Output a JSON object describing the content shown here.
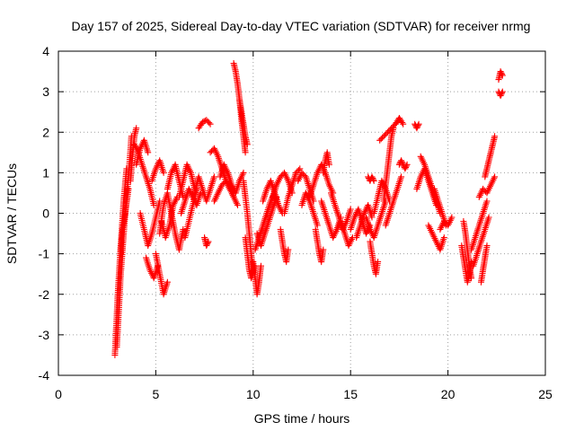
{
  "chart_data": {
    "type": "scatter",
    "title": "Day 157 of 2025, Sidereal Day-to-day VTEC variation (SDTVAR) for receiver nrmg",
    "xlabel": "GPS time / hours",
    "ylabel": "SDTVAR / TECUs",
    "xlim": [
      0,
      25
    ],
    "ylim": [
      -4,
      4
    ],
    "xticks": [
      0,
      5,
      10,
      15,
      20,
      25
    ],
    "yticks": [
      -4,
      -3,
      -2,
      -1,
      0,
      1,
      2,
      3,
      4
    ],
    "xtick_labels": [
      "0",
      "5",
      "10",
      "15",
      "20",
      "25"
    ],
    "ytick_labels": [
      "-4",
      "-3",
      "-2",
      "-1",
      "0",
      "1",
      "2",
      "3",
      "4"
    ],
    "grid": true,
    "marker": "+",
    "color": "#ff0000",
    "segments": [
      {
        "x": [
          2.9,
          3.05,
          3.2,
          3.35,
          3.5
        ],
        "y": [
          -3.5,
          -2.0,
          -0.8,
          0.3,
          1.1
        ]
      },
      {
        "x": [
          3.0,
          3.2,
          3.4,
          3.6,
          3.75
        ],
        "y": [
          -3.3,
          -1.5,
          -0.2,
          0.9,
          1.9
        ]
      },
      {
        "x": [
          3.2,
          3.3,
          3.45,
          3.6
        ],
        "y": [
          -1.0,
          -0.4,
          0.1,
          0.6
        ]
      },
      {
        "x": [
          3.7,
          3.8,
          3.9,
          4.0
        ],
        "y": [
          0.8,
          1.4,
          1.9,
          2.1
        ]
      },
      {
        "x": [
          3.9,
          4.1,
          4.3,
          4.5,
          4.7,
          4.9
        ],
        "y": [
          1.7,
          1.5,
          1.2,
          0.9,
          0.6,
          0.2
        ]
      },
      {
        "x": [
          4.0,
          4.2,
          4.4,
          4.6
        ],
        "y": [
          1.2,
          1.6,
          1.8,
          1.5
        ]
      },
      {
        "x": [
          4.2,
          4.4,
          4.6,
          4.8,
          5.0,
          5.2
        ],
        "y": [
          0.0,
          -0.4,
          -0.8,
          -0.5,
          -0.1,
          0.3
        ]
      },
      {
        "x": [
          4.5,
          4.7,
          4.9,
          5.1
        ],
        "y": [
          -1.1,
          -1.4,
          -1.6,
          -1.3
        ]
      },
      {
        "x": [
          4.8,
          5.0,
          5.2,
          5.4
        ],
        "y": [
          0.8,
          1.1,
          1.3,
          1.0
        ]
      },
      {
        "x": [
          5.0,
          5.2,
          5.4,
          5.6
        ],
        "y": [
          -1.0,
          -1.5,
          -2.0,
          -1.7
        ]
      },
      {
        "x": [
          5.2,
          5.4,
          5.6,
          5.8,
          6.0,
          6.2,
          6.4
        ],
        "y": [
          -0.5,
          0.2,
          0.5,
          0.0,
          -0.5,
          -0.9,
          -0.4
        ]
      },
      {
        "x": [
          5.3,
          5.5,
          5.7,
          5.9,
          6.1
        ],
        "y": [
          -0.2,
          -0.6,
          -0.3,
          0.2,
          0.4
        ]
      },
      {
        "x": [
          5.6,
          5.8,
          6.0,
          6.2,
          6.4
        ],
        "y": [
          0.6,
          1.0,
          1.2,
          0.8,
          0.4
        ]
      },
      {
        "x": [
          6.2,
          6.4,
          6.6,
          6.8,
          7.0
        ],
        "y": [
          0.4,
          0.8,
          1.2,
          1.0,
          0.6
        ]
      },
      {
        "x": [
          6.3,
          6.5,
          6.7,
          6.9,
          7.1,
          7.3
        ],
        "y": [
          0.0,
          0.3,
          0.6,
          0.4,
          0.2,
          0.5
        ]
      },
      {
        "x": [
          6.5,
          6.7,
          6.9,
          7.1
        ],
        "y": [
          -0.6,
          -0.2,
          0.2,
          0.6
        ]
      },
      {
        "x": [
          7.0,
          7.2,
          7.4,
          7.6,
          7.8,
          8.0
        ],
        "y": [
          0.5,
          0.9,
          0.6,
          0.3,
          0.6,
          0.9
        ]
      },
      {
        "x": [
          7.2,
          7.4,
          7.6,
          7.8
        ],
        "y": [
          2.1,
          2.25,
          2.3,
          2.2
        ]
      },
      {
        "x": [
          7.5,
          7.6,
          7.7
        ],
        "y": [
          -0.6,
          -0.8,
          -0.7
        ]
      },
      {
        "x": [
          7.8,
          8.0,
          8.2,
          8.4,
          8.6,
          8.8,
          9.0
        ],
        "y": [
          1.5,
          1.6,
          1.4,
          1.1,
          0.8,
          0.6,
          0.4
        ]
      },
      {
        "x": [
          8.0,
          8.2,
          8.4,
          8.6,
          8.8,
          9.0,
          9.2
        ],
        "y": [
          0.3,
          0.5,
          0.7,
          0.8,
          0.6,
          0.4,
          0.2
        ]
      },
      {
        "x": [
          8.3,
          8.5,
          8.7,
          8.9,
          9.1,
          9.3,
          9.5
        ],
        "y": [
          0.9,
          1.2,
          1.0,
          0.7,
          0.5,
          0.8,
          1.0
        ]
      },
      {
        "x": [
          9.0,
          9.1,
          9.2,
          9.3,
          9.4,
          9.5,
          9.6
        ],
        "y": [
          3.7,
          3.5,
          3.2,
          2.8,
          2.3,
          1.9,
          1.5
        ]
      },
      {
        "x": [
          9.3,
          9.4,
          9.5,
          9.6,
          9.7
        ],
        "y": [
          2.8,
          2.5,
          2.2,
          1.9,
          1.7
        ]
      },
      {
        "x": [
          9.5,
          9.6,
          9.7,
          9.8,
          9.9,
          10.0
        ],
        "y": [
          0.8,
          0.4,
          0.0,
          -0.5,
          -1.0,
          -1.5
        ]
      },
      {
        "x": [
          9.6,
          9.7,
          9.8,
          9.9,
          10.1
        ],
        "y": [
          -0.6,
          -1.0,
          -1.4,
          -1.6,
          -1.3
        ]
      },
      {
        "x": [
          10.0,
          10.1,
          10.2,
          10.3,
          10.4
        ],
        "y": [
          -1.2,
          -1.6,
          -2.0,
          -1.7,
          -1.3
        ]
      },
      {
        "x": [
          10.1,
          10.3,
          10.5,
          10.7,
          10.9,
          11.1,
          11.3
        ],
        "y": [
          -0.9,
          -0.6,
          -0.3,
          0.0,
          0.3,
          0.5,
          0.2
        ]
      },
      {
        "x": [
          10.2,
          10.4,
          10.6,
          10.8,
          11.0,
          11.2
        ],
        "y": [
          -0.5,
          -0.8,
          -0.5,
          -0.2,
          0.1,
          0.4
        ]
      },
      {
        "x": [
          10.5,
          10.7,
          10.9,
          11.1,
          11.3,
          11.5
        ],
        "y": [
          0.3,
          0.6,
          0.8,
          0.5,
          0.2,
          0.0
        ]
      },
      {
        "x": [
          11.0,
          11.2,
          11.4,
          11.6,
          11.8,
          12.0
        ],
        "y": [
          0.4,
          0.7,
          0.9,
          1.0,
          0.8,
          0.5
        ]
      },
      {
        "x": [
          11.4,
          11.5,
          11.6,
          11.7,
          11.8
        ],
        "y": [
          -0.4,
          -0.7,
          -1.0,
          -1.2,
          -0.9
        ]
      },
      {
        "x": [
          11.6,
          11.8,
          12.0,
          12.2,
          12.4
        ],
        "y": [
          0.0,
          0.4,
          0.7,
          1.0,
          1.1
        ]
      },
      {
        "x": [
          12.3,
          12.5,
          12.7,
          12.9,
          13.1
        ],
        "y": [
          0.8,
          1.0,
          0.9,
          0.6,
          0.3
        ]
      },
      {
        "x": [
          12.5,
          12.7,
          12.9,
          13.1,
          13.3
        ],
        "y": [
          0.2,
          0.5,
          0.3,
          0.0,
          -0.3
        ]
      },
      {
        "x": [
          12.9,
          13.1,
          13.3,
          13.5,
          13.7,
          13.9,
          14.1
        ],
        "y": [
          0.4,
          0.7,
          1.0,
          1.2,
          1.0,
          0.7,
          0.5
        ]
      },
      {
        "x": [
          13.2,
          13.3,
          13.4,
          13.5,
          13.6
        ],
        "y": [
          -0.4,
          -0.7,
          -1.0,
          -1.2,
          -0.9
        ]
      },
      {
        "x": [
          13.5,
          13.7,
          13.9,
          14.1,
          14.3,
          14.5
        ],
        "y": [
          0.3,
          0.0,
          -0.3,
          -0.6,
          -0.4,
          -0.1
        ]
      },
      {
        "x": [
          13.6,
          13.7,
          13.8,
          13.9
        ],
        "y": [
          1.0,
          1.3,
          1.5,
          1.2
        ]
      },
      {
        "x": [
          14.0,
          14.2,
          14.4,
          14.6,
          14.8,
          15.0
        ],
        "y": [
          0.5,
          0.2,
          -0.1,
          -0.4,
          -0.2,
          0.1
        ]
      },
      {
        "x": [
          14.3,
          14.5,
          14.7,
          14.9,
          15.1
        ],
        "y": [
          -0.4,
          -0.2,
          -0.5,
          -0.8,
          -0.6
        ]
      },
      {
        "x": [
          15.0,
          15.2,
          15.4,
          15.6,
          15.8,
          16.0
        ],
        "y": [
          -0.4,
          -0.1,
          0.1,
          -0.2,
          -0.5,
          -0.3
        ]
      },
      {
        "x": [
          15.3,
          15.5,
          15.7,
          15.9,
          16.1
        ],
        "y": [
          -0.6,
          -0.3,
          0.0,
          0.2,
          -0.1
        ]
      },
      {
        "x": [
          15.9,
          16.0,
          16.1,
          16.2
        ],
        "y": [
          0.9,
          0.8,
          0.9,
          0.8
        ]
      },
      {
        "x": [
          15.8,
          16.0,
          16.2,
          16.4,
          16.6,
          16.8
        ],
        "y": [
          -0.1,
          -0.4,
          -0.6,
          -0.3,
          0.0,
          0.3
        ]
      },
      {
        "x": [
          16.0,
          16.1,
          16.2,
          16.3,
          16.4
        ],
        "y": [
          -0.7,
          -1.0,
          -1.3,
          -1.5,
          -1.2
        ]
      },
      {
        "x": [
          16.2,
          16.4,
          16.6,
          16.8,
          17.0
        ],
        "y": [
          0.0,
          0.4,
          0.8,
          0.6,
          0.3
        ]
      },
      {
        "x": [
          16.5,
          16.7,
          16.9,
          17.1,
          17.3,
          17.5
        ],
        "y": [
          1.8,
          1.9,
          2.0,
          2.1,
          2.2,
          2.3
        ]
      },
      {
        "x": [
          16.7,
          16.8,
          16.9,
          17.0,
          17.1,
          17.2
        ],
        "y": [
          0.3,
          0.7,
          1.1,
          1.5,
          1.9,
          2.1
        ]
      },
      {
        "x": [
          16.8,
          17.0,
          17.2,
          17.4,
          17.6
        ],
        "y": [
          -0.3,
          0.0,
          0.3,
          0.6,
          0.9
        ]
      },
      {
        "x": [
          17.3,
          17.5,
          17.7
        ],
        "y": [
          2.2,
          2.35,
          2.2
        ]
      },
      {
        "x": [
          17.5,
          17.6,
          17.7,
          17.8,
          17.9
        ],
        "y": [
          1.2,
          1.3,
          1.2,
          1.1,
          1.2
        ]
      },
      {
        "x": [
          18.3,
          18.4,
          18.5
        ],
        "y": [
          2.2,
          2.1,
          2.2
        ]
      },
      {
        "x": [
          18.4,
          18.6,
          18.8,
          19.0,
          19.2,
          19.4
        ],
        "y": [
          0.6,
          0.9,
          1.1,
          0.8,
          0.5,
          0.2
        ]
      },
      {
        "x": [
          18.6,
          18.8,
          19.0,
          19.2,
          19.4,
          19.6
        ],
        "y": [
          1.4,
          1.2,
          0.9,
          0.6,
          0.3,
          0.0
        ]
      },
      {
        "x": [
          19.0,
          19.2,
          19.4,
          19.6,
          19.8
        ],
        "y": [
          -0.3,
          -0.5,
          -0.7,
          -0.9,
          -0.6
        ]
      },
      {
        "x": [
          19.3,
          19.5,
          19.7,
          19.9
        ],
        "y": [
          0.6,
          0.3,
          0.0,
          -0.3
        ]
      },
      {
        "x": [
          19.6,
          19.8,
          20.0,
          20.2
        ],
        "y": [
          -0.4,
          -0.2,
          -0.3,
          -0.1
        ]
      },
      {
        "x": [
          20.7,
          20.8,
          20.9,
          21.0,
          21.1,
          21.2
        ],
        "y": [
          -0.8,
          -1.1,
          -1.4,
          -1.7,
          -1.5,
          -1.2
        ]
      },
      {
        "x": [
          20.8,
          20.9,
          21.0,
          21.1,
          21.2
        ],
        "y": [
          -0.2,
          -0.5,
          -0.9,
          -1.3,
          -1.6
        ]
      },
      {
        "x": [
          21.2,
          21.4,
          21.6,
          21.8,
          22.0
        ],
        "y": [
          -0.9,
          -0.6,
          -0.3,
          0.0,
          0.3
        ]
      },
      {
        "x": [
          21.3,
          21.5,
          21.7,
          21.9,
          22.1
        ],
        "y": [
          -1.3,
          -1.0,
          -0.7,
          -0.4,
          -0.1
        ]
      },
      {
        "x": [
          21.6,
          21.8,
          22.0,
          22.2,
          22.4
        ],
        "y": [
          0.4,
          0.6,
          0.5,
          0.7,
          0.9
        ]
      },
      {
        "x": [
          21.9,
          22.0,
          22.1,
          22.2,
          22.3,
          22.4
        ],
        "y": [
          0.9,
          1.1,
          1.3,
          1.5,
          1.7,
          1.9
        ]
      },
      {
        "x": [
          21.7,
          21.8,
          21.9,
          22.0
        ],
        "y": [
          -1.7,
          -1.4,
          -1.1,
          -0.8
        ]
      },
      {
        "x": [
          22.6,
          22.7,
          22.8
        ],
        "y": [
          3.3,
          3.5,
          3.4
        ]
      },
      {
        "x": [
          22.6,
          22.7,
          22.8
        ],
        "y": [
          3.0,
          2.9,
          3.0
        ]
      }
    ]
  }
}
